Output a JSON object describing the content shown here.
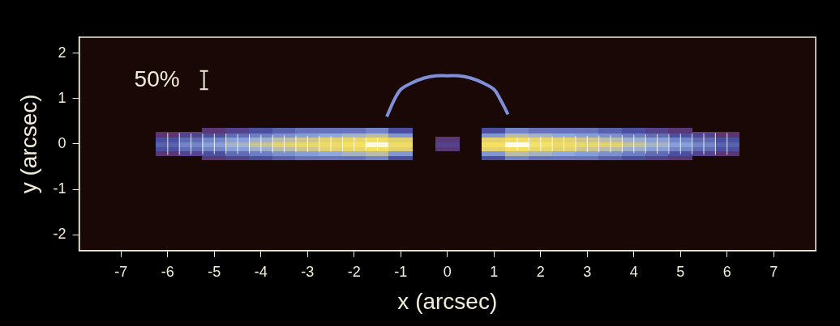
{
  "chart_data": {
    "type": "heatmap",
    "x_label": "x (arcsec)",
    "y_label": "y (arcsec)",
    "xlim": [
      -7.9,
      7.9
    ],
    "ylim": [
      -2.35,
      2.35
    ],
    "xticks": [
      -7,
      -6,
      -5,
      -4,
      -3,
      -2,
      -1,
      0,
      1,
      2,
      3,
      4,
      5,
      6,
      7
    ],
    "yticks": [
      -2,
      -1,
      0,
      1,
      2
    ],
    "grid": false,
    "cells": {
      "x": [
        -6,
        -5.5,
        -5,
        -4.5,
        -4,
        -3.5,
        -3,
        -2.5,
        -2,
        -1.5,
        -1,
        -0.5,
        0,
        0.5,
        1,
        1.5,
        2,
        2.5,
        3,
        3.5,
        4,
        4.5,
        5,
        5.5,
        6
      ],
      "y": [
        -0.3,
        -0.2,
        -0.1,
        0,
        0.1,
        0.2,
        0.3
      ],
      "values": [
        [
          0,
          0,
          0.1,
          0.15,
          0.2,
          0.25,
          0.3,
          0.3,
          0.3,
          0.35,
          0.2,
          0,
          0,
          0,
          0.2,
          0.35,
          0.3,
          0.3,
          0.3,
          0.25,
          0.2,
          0.15,
          0.1,
          0,
          0
        ],
        [
          0.08,
          0.15,
          0.2,
          0.28,
          0.33,
          0.38,
          0.42,
          0.45,
          0.5,
          0.55,
          0.4,
          0,
          0,
          0,
          0.4,
          0.55,
          0.5,
          0.45,
          0.42,
          0.38,
          0.33,
          0.28,
          0.2,
          0.15,
          0.08
        ],
        [
          0.2,
          0.28,
          0.35,
          0.42,
          0.48,
          0.55,
          0.6,
          0.66,
          0.72,
          0.82,
          0.65,
          0,
          0.1,
          0,
          0.68,
          0.83,
          0.72,
          0.66,
          0.6,
          0.55,
          0.48,
          0.42,
          0.35,
          0.28,
          0.2
        ],
        [
          0.25,
          0.35,
          0.42,
          0.5,
          0.58,
          0.66,
          0.72,
          0.78,
          0.85,
          0.97,
          0.8,
          0,
          0.15,
          0,
          0.85,
          0.98,
          0.86,
          0.78,
          0.72,
          0.66,
          0.58,
          0.5,
          0.42,
          0.35,
          0.25
        ],
        [
          0.2,
          0.28,
          0.35,
          0.42,
          0.48,
          0.55,
          0.6,
          0.66,
          0.72,
          0.82,
          0.65,
          0,
          0.1,
          0,
          0.68,
          0.83,
          0.72,
          0.66,
          0.6,
          0.55,
          0.48,
          0.42,
          0.35,
          0.28,
          0.2
        ],
        [
          0.08,
          0.15,
          0.2,
          0.28,
          0.33,
          0.38,
          0.42,
          0.45,
          0.5,
          0.55,
          0.4,
          0,
          0,
          0,
          0.4,
          0.55,
          0.5,
          0.45,
          0.42,
          0.38,
          0.33,
          0.28,
          0.2,
          0.15,
          0.08
        ],
        [
          0,
          0,
          0.1,
          0.15,
          0.2,
          0.25,
          0.3,
          0.3,
          0.3,
          0.35,
          0.2,
          0,
          0,
          0,
          0.2,
          0.35,
          0.3,
          0.3,
          0.3,
          0.25,
          0.2,
          0.15,
          0.1,
          0,
          0
        ]
      ]
    },
    "arc": {
      "x": [
        -1.3,
        -1.15,
        -1.0,
        -0.75,
        -0.5,
        -0.25,
        0,
        0.25,
        0.5,
        0.75,
        1.0,
        1.15,
        1.3
      ],
      "y": [
        0.6,
        0.95,
        1.2,
        1.35,
        1.45,
        1.5,
        1.5,
        1.5,
        1.45,
        1.35,
        1.2,
        0.95,
        0.65
      ]
    },
    "vectors": {
      "x": [
        -6,
        -5.75,
        -5.5,
        -5.25,
        -5,
        -4.75,
        -4.5,
        -4.25,
        -4,
        -3.75,
        -3.5,
        -3.25,
        -3,
        -2.75,
        -2.5,
        -2.25,
        -2,
        -1.75,
        -1.5,
        1.5,
        1.75,
        2,
        2.25,
        2.5,
        2.75,
        3,
        3.25,
        3.5,
        3.75,
        4,
        4.25,
        4.5,
        4.75,
        5,
        5.25,
        5.5,
        5.75,
        6
      ],
      "y": [
        0,
        0,
        0,
        0,
        0,
        0,
        0,
        0,
        0,
        0,
        0,
        0,
        0,
        0,
        0,
        0,
        0,
        0,
        0,
        0,
        0,
        0,
        0,
        0,
        0,
        0,
        0,
        0,
        0,
        0,
        0,
        0,
        0,
        0,
        0,
        0,
        0,
        0
      ],
      "percent": [
        60,
        60,
        58,
        57,
        56,
        55,
        54,
        52,
        50,
        48,
        47,
        46,
        45,
        44,
        42,
        40,
        38,
        36,
        35,
        35,
        36,
        38,
        40,
        42,
        44,
        45,
        46,
        47,
        48,
        50,
        52,
        54,
        55,
        56,
        57,
        58,
        60,
        60
      ],
      "angle": [
        90,
        90,
        90,
        90,
        90,
        90,
        90,
        90,
        90,
        90,
        90,
        90,
        90,
        90,
        90,
        90,
        90,
        90,
        90,
        90,
        90,
        90,
        90,
        90,
        90,
        90,
        90,
        90,
        90,
        90,
        90,
        90,
        90,
        90,
        90,
        90,
        90,
        90
      ],
      "scale": {
        "value": 50,
        "label": "50%",
        "length": 0.4
      }
    }
  }
}
